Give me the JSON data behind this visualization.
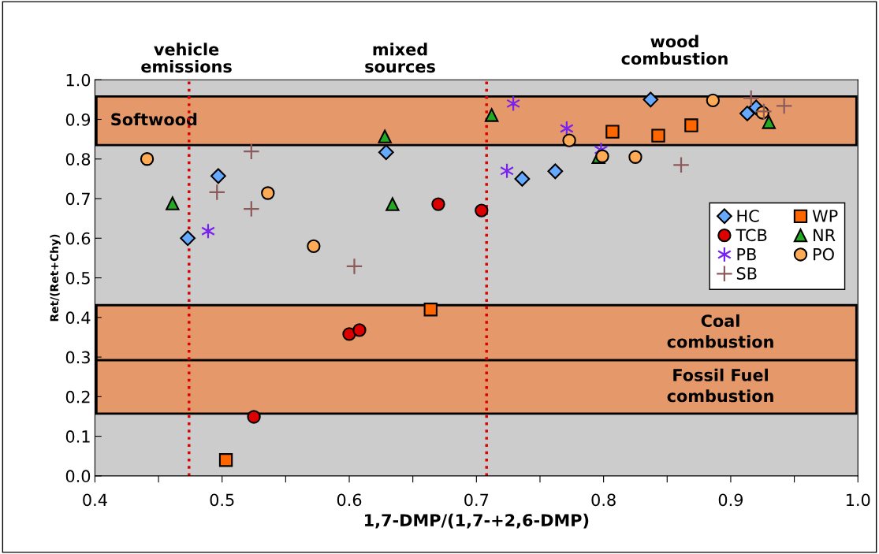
{
  "chart_data": {
    "type": "scatter",
    "xlabel": "1,7-DMP/(1,7-+2,6-DMP)",
    "ylabel": "Ret/(Ret+Chy)",
    "xlim": [
      0.4,
      1.0
    ],
    "ylim": [
      0.0,
      1.0
    ],
    "xticks": [
      0.4,
      {
        "value": 0.45,
        "label": null
      },
      0.5,
      {
        "value": 0.55,
        "label": null
      },
      0.6,
      {
        "value": 0.65,
        "label": null
      },
      0.7,
      {
        "value": 0.75,
        "label": null
      },
      0.8,
      {
        "value": 0.85,
        "label": null
      },
      0.9,
      {
        "value": 0.95,
        "label": null
      },
      {
        "value": 1.0,
        "label": "1.0"
      }
    ],
    "yticks": [
      {
        "value": 0.0,
        "label": "0.0"
      },
      0.1,
      0.2,
      0.3,
      0.4,
      0.5,
      0.6,
      0.7,
      0.8,
      0.9,
      {
        "value": 1.0,
        "label": "1.0"
      }
    ],
    "grid": false,
    "legend": "right",
    "series": [
      {
        "name": "HC",
        "color": "#66aaff",
        "marker": "diamond",
        "x": [
          0.473,
          0.497,
          0.629,
          0.736,
          0.762,
          0.837,
          0.913,
          0.92
        ],
        "values": [
          0.6,
          0.757,
          0.817,
          0.75,
          0.769,
          0.95,
          0.915,
          0.93
        ]
      },
      {
        "name": "WP",
        "color": "#ff6600",
        "marker": "square",
        "x": [
          0.807,
          0.843,
          0.869,
          0.664,
          0.503
        ],
        "values": [
          0.869,
          0.859,
          0.885,
          0.42,
          0.04
        ]
      },
      {
        "name": "TCB",
        "color": "#dd0000",
        "marker": "circle",
        "x": [
          0.67,
          0.704,
          0.525,
          0.6,
          0.608
        ],
        "values": [
          0.686,
          0.67,
          0.149,
          0.358,
          0.368
        ]
      },
      {
        "name": "NR",
        "color": "#22aa22",
        "marker": "triangle",
        "x": [
          0.461,
          0.628,
          0.634,
          0.712,
          0.796,
          0.93
        ],
        "values": [
          0.688,
          0.857,
          0.686,
          0.911,
          0.805,
          0.893
        ]
      },
      {
        "name": "PB",
        "color": "#7722ee",
        "x": [
          0.489,
          0.724,
          0.729,
          0.771,
          0.798
        ],
        "values": [
          0.618,
          0.77,
          0.94,
          0.877,
          0.823
        ]
      },
      {
        "name": "PO",
        "color": "#ffaa55",
        "marker": "circle",
        "x": [
          0.441,
          0.536,
          0.572,
          0.773,
          0.799,
          0.825,
          0.886,
          0.925
        ],
        "values": [
          0.8,
          0.714,
          0.58,
          0.847,
          0.807,
          0.805,
          0.948,
          0.917
        ]
      },
      {
        "name": "SB",
        "color": "#8b5a5a",
        "marker": "cross",
        "x": [
          0.523,
          0.496,
          0.523,
          0.604,
          0.861,
          0.916,
          0.942,
          0.926
        ],
        "values": [
          0.819,
          0.716,
          0.674,
          0.529,
          0.785,
          0.954,
          0.934,
          0.92
        ]
      }
    ],
    "bands": [
      {
        "axis": "y",
        "from": 0.835,
        "to": 0.958,
        "label": "Softwood",
        "color": "#e5996a"
      },
      {
        "axis": "y",
        "from": 0.292,
        "to": 0.431,
        "label": "Coal\ncombustion",
        "color": "#e5996a"
      },
      {
        "axis": "y",
        "from": 0.157,
        "to": 0.292,
        "label": "Fossil Fuel\ncombustion",
        "color": "#e5996a"
      }
    ],
    "ref_lines": [
      {
        "axis": "x",
        "value": 0.474,
        "color": "#dd0000",
        "line_style": "dotted"
      },
      {
        "axis": "x",
        "value": 0.708,
        "color": "#dd0000",
        "line_style": "dotted"
      }
    ],
    "annotations": [
      "vehicle\nemissions",
      "mixed\nsources",
      "wood\ncombustion"
    ]
  }
}
